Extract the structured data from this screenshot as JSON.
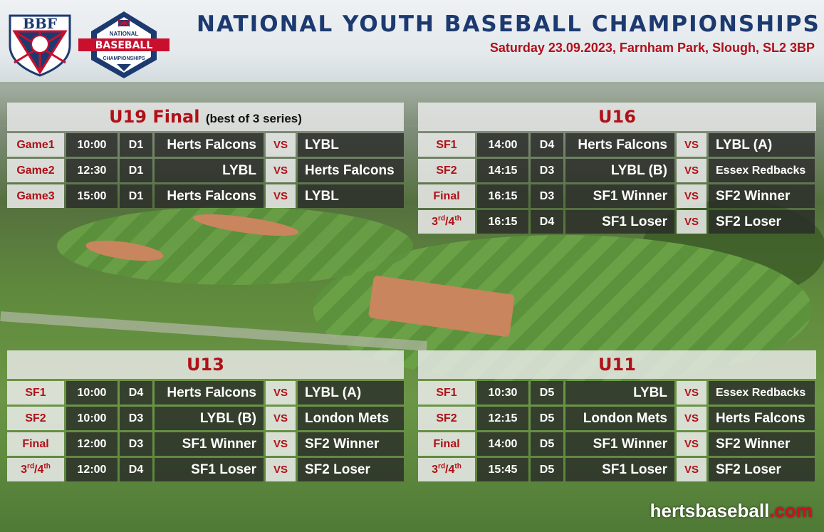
{
  "header": {
    "title": "NATIONAL YOUTH BASEBALL CHAMPIONSHIPS",
    "subtitle": "Saturday 23.09.2023, Farnham Park, Slough, SL2 3BP",
    "bbf_logo_text": "BBF",
    "nbc_logo_text": [
      "NATIONAL",
      "BASEBALL",
      "CHAMPIONSHIPS"
    ]
  },
  "colors": {
    "navy": "#1c3a70",
    "red": "#b01018"
  },
  "vs_label": "VS",
  "panels": {
    "u19": {
      "title": "U19 Final",
      "note": "(best of 3 series)",
      "rows": [
        {
          "label": "Game1",
          "time": "10:00",
          "div": "D1",
          "home": "Herts Falcons",
          "away": "LYBL"
        },
        {
          "label": "Game2",
          "time": "12:30",
          "div": "D1",
          "home": "LYBL",
          "away": "Herts Falcons"
        },
        {
          "label": "Game3",
          "time": "15:00",
          "div": "D1",
          "home": "Herts Falcons",
          "away": "LYBL"
        }
      ]
    },
    "u16": {
      "title": "U16",
      "rows": [
        {
          "label": "SF1",
          "time": "14:00",
          "div": "D4",
          "home": "Herts Falcons",
          "away": "LYBL (A)"
        },
        {
          "label": "SF2",
          "time": "14:15",
          "div": "D3",
          "home": "LYBL (B)",
          "away": "Essex Redbacks"
        },
        {
          "label": "Final",
          "time": "16:15",
          "div": "D3",
          "home": "SF1 Winner",
          "away": "SF2 Winner"
        },
        {
          "label": "3rd/4th",
          "time": "16:15",
          "div": "D4",
          "home": "SF1 Loser",
          "away": "SF2 Loser"
        }
      ]
    },
    "u13": {
      "title": "U13",
      "rows": [
        {
          "label": "SF1",
          "time": "10:00",
          "div": "D4",
          "home": "Herts Falcons",
          "away": "LYBL (A)"
        },
        {
          "label": "SF2",
          "time": "10:00",
          "div": "D3",
          "home": "LYBL (B)",
          "away": "London Mets"
        },
        {
          "label": "Final",
          "time": "12:00",
          "div": "D3",
          "home": "SF1 Winner",
          "away": "SF2 Winner"
        },
        {
          "label": "3rd/4th",
          "time": "12:00",
          "div": "D4",
          "home": "SF1 Loser",
          "away": "SF2 Loser"
        }
      ]
    },
    "u11": {
      "title": "U11",
      "rows": [
        {
          "label": "SF1",
          "time": "10:30",
          "div": "D5",
          "home": "LYBL",
          "away": "Essex Redbacks"
        },
        {
          "label": "SF2",
          "time": "12:15",
          "div": "D5",
          "home": "London Mets",
          "away": "Herts Falcons"
        },
        {
          "label": "Final",
          "time": "14:00",
          "div": "D5",
          "home": "SF1 Winner",
          "away": "SF2 Winner"
        },
        {
          "label": "3rd/4th",
          "time": "15:45",
          "div": "D5",
          "home": "SF1 Loser",
          "away": "SF2 Loser"
        }
      ]
    }
  },
  "footer": {
    "site_main": "hertsbaseball",
    "site_tld": ".com"
  }
}
